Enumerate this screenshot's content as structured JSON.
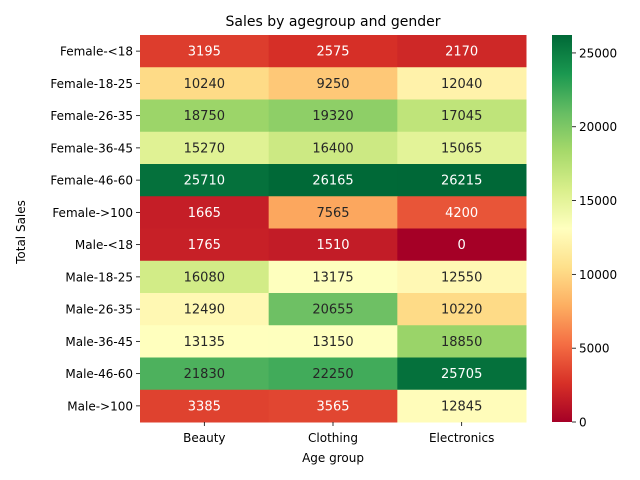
{
  "chart_data": {
    "type": "heatmap",
    "title": "Sales by agegroup and gender",
    "xlabel": "Age group",
    "ylabel": "Total Sales",
    "columns": [
      "Beauty",
      "Clothing",
      "Electronics"
    ],
    "rows": [
      "Female-<18",
      "Female-18-25",
      "Female-26-35",
      "Female-36-45",
      "Female-46-60",
      "Female->100",
      "Male-<18",
      "Male-18-25",
      "Male-26-35",
      "Male-36-45",
      "Male-46-60",
      "Male->100"
    ],
    "values": [
      [
        3195,
        2575,
        2170
      ],
      [
        10240,
        9250,
        12040
      ],
      [
        18750,
        19320,
        17045
      ],
      [
        15270,
        16400,
        15065
      ],
      [
        25710,
        26165,
        26215
      ],
      [
        1665,
        7565,
        4200
      ],
      [
        1765,
        1510,
        0
      ],
      [
        16080,
        13175,
        12550
      ],
      [
        12490,
        20655,
        10220
      ],
      [
        13135,
        13150,
        18850
      ],
      [
        21830,
        22250,
        25705
      ],
      [
        3385,
        3565,
        12845
      ]
    ],
    "colormap": "RdYlGn",
    "vmin": 0,
    "vmax": 26215,
    "colorbar_ticks": [
      0,
      5000,
      10000,
      15000,
      20000,
      25000
    ]
  }
}
